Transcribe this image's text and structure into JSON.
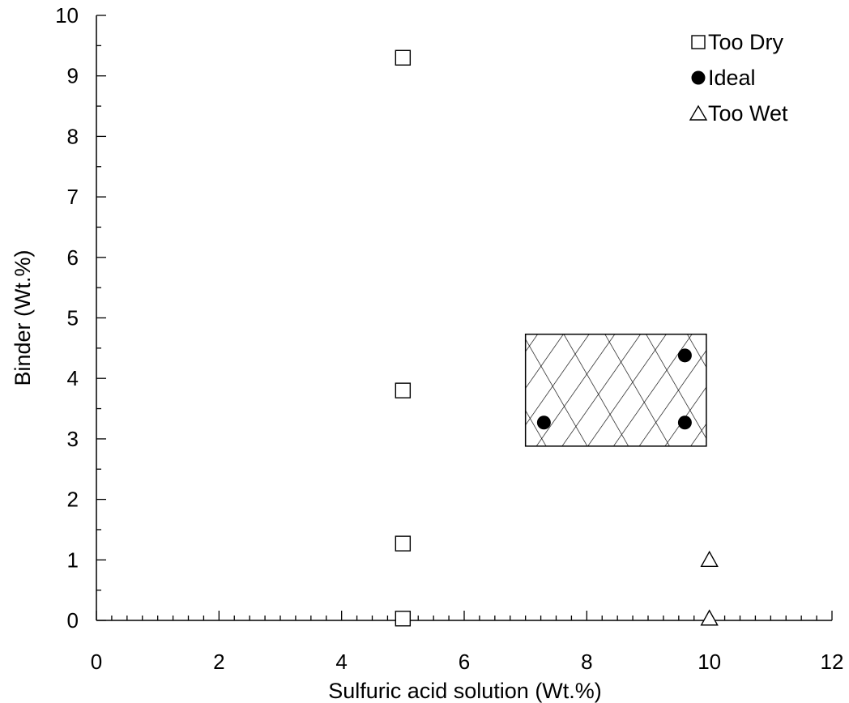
{
  "chart_data": {
    "type": "scatter",
    "title": "",
    "xlabel": "Sulfuric acid solution (Wt.%)",
    "ylabel": "Binder (Wt.%)",
    "xlim": [
      0,
      12
    ],
    "ylim": [
      0,
      10
    ],
    "x_ticks": [
      "0",
      "2",
      "4",
      "6",
      "8",
      "10",
      "12"
    ],
    "y_ticks": [
      "0",
      "1",
      "2",
      "3",
      "4",
      "5",
      "6",
      "7",
      "8",
      "9",
      "10"
    ],
    "grid": false,
    "legend_position": "top-right",
    "series": [
      {
        "name": "Too Dry",
        "marker": "open-square",
        "points": [
          [
            5,
            9.3
          ],
          [
            5,
            3.8
          ],
          [
            5,
            1.27
          ],
          [
            5,
            0.03
          ]
        ]
      },
      {
        "name": "Ideal",
        "marker": "filled-circle",
        "points": [
          [
            7.3,
            3.27
          ],
          [
            9.6,
            3.27
          ],
          [
            9.6,
            4.38
          ]
        ]
      },
      {
        "name": "Too Wet",
        "marker": "open-triangle",
        "points": [
          [
            10,
            1.0
          ],
          [
            10,
            0.03
          ]
        ]
      }
    ],
    "shaded_region": {
      "pattern": "cross-hatch",
      "x_range": [
        7.0,
        9.95
      ],
      "y_range": [
        2.88,
        4.73
      ]
    }
  }
}
